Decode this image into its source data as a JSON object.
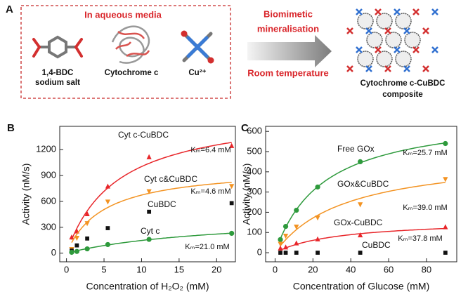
{
  "panel_a": {
    "label": "A",
    "box_title": "In aqueous media",
    "bdc_line1": "1,4-BDC",
    "bdc_line2": "sodium salt",
    "protein": "Cytochrome c",
    "copper": "Cu²⁺",
    "arrow_top1": "Biomimetic",
    "arrow_top2": "mineralisation",
    "arrow_bottom": "Room temperature",
    "product_line1": "Cytochrome c-CuBDC",
    "product_line2": "composite"
  },
  "chart_data": [
    {
      "type": "scatter",
      "panel": "B",
      "xlabel": "Concentration of H₂O₂ (mM)",
      "ylabel": "Activity (nM/s)",
      "x": [
        0.69,
        1.38,
        2.76,
        5.5,
        11,
        22
      ],
      "xlim": [
        -0.9,
        22.5
      ],
      "xticks": [
        0,
        5,
        10,
        15,
        20
      ],
      "ylim": [
        -100,
        1470
      ],
      "yticks": [
        0,
        300,
        600,
        900,
        1200
      ],
      "series": [
        {
          "name": "Cyt c-CuBDC",
          "color": "#e8262a",
          "marker": "triangle-up",
          "fit": true,
          "annotation": "Kₘ=6.4 mM",
          "values": [
            180,
            250,
            450,
            770,
            1110,
            1240
          ]
        },
        {
          "name": "Cyt c&CuBDC",
          "color": "#f39322",
          "marker": "triangle-down",
          "fit": true,
          "annotation": "Kₘ=4.6 mM",
          "values": [
            50,
            180,
            350,
            600,
            720,
            780
          ]
        },
        {
          "name": "CuBDC",
          "color": "#111111",
          "marker": "square",
          "fit": false,
          "values": [
            30,
            90,
            170,
            290,
            480,
            580
          ]
        },
        {
          "name": "Cyt c",
          "color": "#2e9a3c",
          "marker": "circle",
          "fit": true,
          "annotation": "Kₘ=21.0 mM",
          "values": [
            10,
            20,
            50,
            100,
            160,
            230
          ]
        }
      ]
    },
    {
      "type": "scatter",
      "panel": "C",
      "xlabel": "Concentration of Glucose (mM)",
      "ylabel": "Activity (nM/s)",
      "x": [
        2.8,
        5.6,
        11.25,
        22.5,
        45,
        90
      ],
      "xlim": [
        -5,
        96
      ],
      "xticks": [
        0,
        20,
        40,
        60,
        80
      ],
      "ylim": [
        -45,
        625
      ],
      "yticks": [
        0,
        100,
        200,
        300,
        400,
        500,
        600
      ],
      "series": [
        {
          "name": "Free GOx",
          "color": "#2e9a3c",
          "marker": "circle",
          "fit": true,
          "annotation": "Kₘ=25.7 mM",
          "values": [
            65,
            130,
            210,
            325,
            450,
            540
          ]
        },
        {
          "name": "GOx&CuBDC",
          "color": "#f39322",
          "marker": "triangle-down",
          "fit": true,
          "annotation": "Kₘ=39.0 mM",
          "values": [
            45,
            85,
            130,
            175,
            240,
            365
          ]
        },
        {
          "name": "GOx-CuBDC",
          "color": "#e8262a",
          "marker": "triangle-up",
          "fit": true,
          "annotation": "Kₘ=37.8 mM",
          "values": [
            20,
            25,
            45,
            65,
            85,
            125
          ]
        },
        {
          "name": "CuBDC",
          "color": "#111111",
          "marker": "square",
          "fit": false,
          "values": [
            0,
            0,
            0,
            0,
            0,
            0
          ]
        }
      ]
    }
  ]
}
